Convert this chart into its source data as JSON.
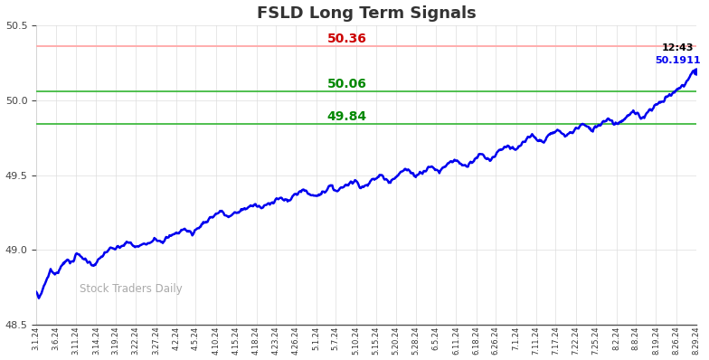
{
  "title": "FSLD Long Term Signals",
  "title_fontsize": 13,
  "title_fontweight": "bold",
  "title_color": "#333333",
  "ylim": [
    48.5,
    50.5
  ],
  "yticks": [
    48.5,
    49.0,
    49.5,
    50.0,
    50.5
  ],
  "line_color": "#0000ee",
  "line_width": 1.8,
  "red_line": 50.36,
  "green_line_upper": 50.06,
  "green_line_lower": 49.84,
  "red_line_color": "#ffaaaa",
  "green_line_color": "#44bb44",
  "red_label_color": "#cc0000",
  "green_label_color": "#008800",
  "annotation_time": "12:43",
  "annotation_price": "50.1911",
  "watermark": "Stock Traders Daily",
  "watermark_color": "#aaaaaa",
  "background_color": "#ffffff",
  "tick_labels": [
    "3.1.24",
    "3.6.24",
    "3.11.24",
    "3.14.24",
    "3.19.24",
    "3.22.24",
    "3.27.24",
    "4.2.24",
    "4.5.24",
    "4.10.24",
    "4.15.24",
    "4.18.24",
    "4.23.24",
    "4.26.24",
    "5.1.24",
    "5.7.24",
    "5.10.24",
    "5.15.24",
    "5.20.24",
    "5.28.24",
    "6.5.24",
    "6.11.24",
    "6.18.24",
    "6.26.24",
    "7.1.24",
    "7.11.24",
    "7.17.24",
    "7.22.24",
    "7.25.24",
    "8.2.24",
    "8.8.24",
    "8.19.24",
    "8.26.24",
    "8.29.24"
  ],
  "anchors_x": [
    0,
    3,
    7,
    12,
    17,
    22,
    28,
    35,
    40,
    48,
    55,
    62,
    70,
    78,
    85,
    95,
    102,
    110,
    118,
    130,
    140,
    150,
    162,
    175,
    185,
    198,
    208,
    218,
    228,
    238,
    248,
    258,
    268,
    278,
    288,
    298,
    308,
    318,
    328,
    338,
    348,
    358,
    368,
    378,
    388,
    398,
    408,
    418,
    428,
    438,
    448,
    458,
    468,
    478,
    488,
    498,
    508,
    518,
    528,
    538,
    548,
    558,
    568,
    578,
    588,
    598,
    608,
    618,
    628,
    638,
    648,
    658,
    668,
    678,
    688,
    698,
    708,
    718,
    728,
    738,
    748,
    758,
    768,
    779
  ],
  "anchors_y": [
    48.72,
    48.68,
    48.73,
    48.8,
    48.87,
    48.83,
    48.88,
    48.94,
    48.91,
    48.97,
    48.95,
    48.92,
    48.9,
    48.96,
    49.0,
    49.01,
    49.03,
    49.05,
    49.02,
    49.04,
    49.08,
    49.06,
    49.1,
    49.14,
    49.11,
    49.18,
    49.22,
    49.26,
    49.22,
    49.25,
    49.28,
    49.3,
    49.28,
    49.32,
    49.35,
    49.32,
    49.38,
    49.4,
    49.36,
    49.38,
    49.42,
    49.4,
    49.44,
    49.46,
    49.42,
    49.46,
    49.5,
    49.46,
    49.5,
    49.54,
    49.5,
    49.52,
    49.56,
    49.52,
    49.58,
    49.6,
    49.56,
    49.6,
    49.64,
    49.6,
    49.66,
    49.7,
    49.66,
    49.72,
    49.76,
    49.72,
    49.76,
    49.8,
    49.76,
    49.8,
    49.84,
    49.8,
    49.84,
    49.88,
    49.84,
    49.88,
    49.92,
    49.88,
    49.94,
    49.98,
    50.02,
    50.06,
    50.1,
    50.1911
  ]
}
